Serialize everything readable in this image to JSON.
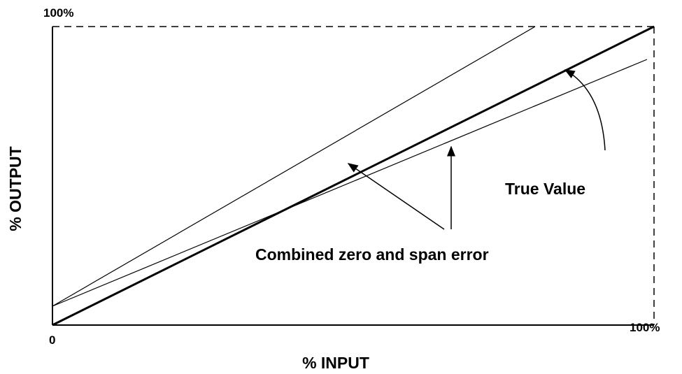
{
  "labels": {
    "y_max": "100%",
    "origin": "0",
    "x_max": "100%",
    "y_axis": "% OUTPUT",
    "x_axis": "% INPUT"
  },
  "annotations": {
    "true_value": "True Value",
    "combined_error": "Combined zero and span error"
  }
}
